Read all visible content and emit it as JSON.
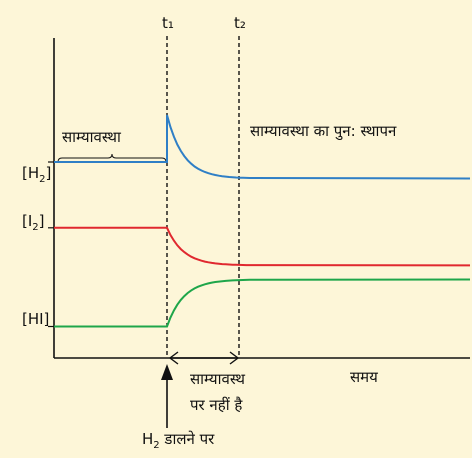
{
  "chart_data": {
    "type": "line",
    "title": "",
    "xlabel": "समय",
    "ylabel": "",
    "x_markers": [
      {
        "label": "t₁",
        "x": 0
      },
      {
        "label": "t₂",
        "x": 1
      }
    ],
    "annotations": {
      "equilibrium": "साम्यावस्था",
      "re_established": "साम्यावस्था का पुन: स्थापन",
      "not_at_equilibrium_1": "साम्यावस्थ",
      "not_at_equilibrium_2": "पर नहीं है",
      "h2_added_prefix": "H",
      "h2_added_sub": "2",
      "h2_added_suffix": " डालने पर"
    },
    "series": [
      {
        "name": "[H₂]",
        "label_main": "[H",
        "label_sub": "2",
        "label_close": "]",
        "color": "#2f7fc6",
        "before": 0.8,
        "peak": 1.0,
        "after": 0.73
      },
      {
        "name": "[I₂]",
        "label_main": "[I",
        "label_sub": "2",
        "label_close": "]",
        "color": "#e0282f",
        "before": 0.52,
        "peak": 0.52,
        "after": 0.36
      },
      {
        "name": "[HI]",
        "label_main": "[HI]",
        "label_sub": "",
        "label_close": "",
        "color": "#1ea64a",
        "before": 0.1,
        "peak": 0.1,
        "after": 0.3
      }
    ]
  }
}
